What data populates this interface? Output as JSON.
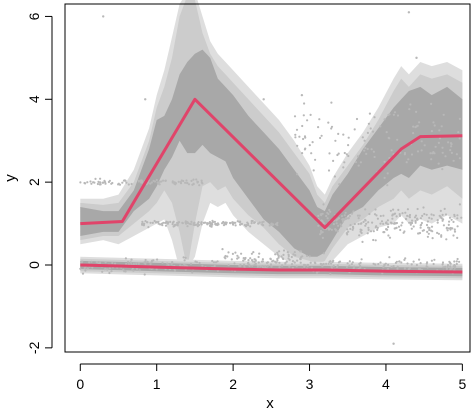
{
  "chart_data": {
    "type": "line",
    "title": "",
    "xlabel": "x",
    "ylabel": "y",
    "xlim": [
      -0.2,
      5.1
    ],
    "ylim": [
      -2.1,
      6.3
    ],
    "xticks": [
      "0",
      "1",
      "2",
      "3",
      "4",
      "5"
    ],
    "yticks": [
      "-2",
      "0",
      "2",
      "4",
      "6"
    ],
    "grid": false,
    "legend": "none",
    "colors": {
      "line": "#e0446a",
      "band_outer": "#dedede",
      "band_middle": "#cccccc",
      "band_inner": "#a8a8a8",
      "points": "#b8b8b8"
    },
    "series": [
      {
        "x": [
          0,
          0.55,
          1.5,
          3.2,
          4.2,
          4.45,
          5.0
        ],
        "y": [
          1.0,
          1.05,
          4.0,
          0.9,
          2.8,
          3.1,
          3.12
        ],
        "band_inner": {
          "x": [
            0,
            0.3,
            0.5,
            0.7,
            0.9,
            1.0,
            1.1,
            1.2,
            1.3,
            1.4,
            1.5,
            1.6,
            1.7,
            1.8,
            1.9,
            2.0,
            2.2,
            2.4,
            2.6,
            2.8,
            3.0,
            3.1,
            3.2,
            3.3,
            3.5,
            3.7,
            3.9,
            4.1,
            4.2,
            4.3,
            4.45,
            4.6,
            4.8,
            5.0
          ],
          "upper": [
            1.4,
            1.3,
            1.3,
            1.8,
            2.8,
            3.5,
            3.6,
            4.0,
            4.6,
            4.9,
            5.1,
            5.2,
            5.0,
            4.5,
            4.3,
            4.1,
            3.6,
            3.2,
            2.8,
            2.3,
            1.8,
            1.4,
            1.3,
            1.7,
            2.2,
            2.8,
            3.3,
            3.8,
            4.0,
            4.2,
            4.3,
            4.1,
            4.3,
            4.0
          ],
          "lower": [
            0.7,
            0.8,
            0.8,
            1.3,
            1.6,
            1.9,
            2.3,
            2.6,
            3.0,
            2.7,
            2.7,
            2.9,
            2.7,
            2.6,
            2.5,
            2.1,
            1.6,
            1.1,
            0.8,
            0.4,
            0.2,
            0.2,
            0.3,
            0.6,
            1.2,
            1.4,
            1.8,
            2.1,
            2.2,
            2.1,
            2.4,
            2.3,
            2.4,
            2.3
          ]
        },
        "band_middle": {
          "x": [
            0,
            0.3,
            0.5,
            0.7,
            0.9,
            1.0,
            1.1,
            1.2,
            1.3,
            1.4,
            1.5,
            1.6,
            1.7,
            1.8,
            1.9,
            2.0,
            2.2,
            2.4,
            2.6,
            2.8,
            3.0,
            3.1,
            3.2,
            3.3,
            3.5,
            3.7,
            3.9,
            4.1,
            4.2,
            4.3,
            4.45,
            4.6,
            4.8,
            5.0
          ],
          "upper": [
            1.5,
            1.45,
            1.5,
            2.0,
            3.0,
            3.8,
            4.3,
            5.0,
            6.0,
            6.5,
            6.4,
            5.6,
            5.1,
            4.8,
            4.6,
            4.4,
            4.0,
            3.6,
            3.2,
            2.7,
            2.2,
            1.7,
            1.5,
            1.9,
            2.4,
            2.9,
            3.5,
            4.2,
            4.5,
            4.3,
            4.6,
            4.5,
            4.6,
            4.4
          ],
          "lower": [
            0.6,
            0.7,
            0.7,
            1.0,
            1.3,
            1.5,
            1.8,
            1.5,
            0.8,
            -0.1,
            1.0,
            1.9,
            2.0,
            1.8,
            1.9,
            1.6,
            1.2,
            0.9,
            0.5,
            0.2,
            0.1,
            0.0,
            0.1,
            0.4,
            0.9,
            1.1,
            1.4,
            1.6,
            1.8,
            1.6,
            1.8,
            1.7,
            1.9,
            1.6
          ]
        },
        "band_outer": {
          "x": [
            0,
            0.3,
            0.5,
            0.7,
            0.9,
            1.0,
            1.1,
            1.2,
            1.3,
            1.4,
            1.5,
            1.6,
            1.7,
            1.8,
            1.9,
            2.0,
            2.2,
            2.4,
            2.6,
            2.8,
            3.0,
            3.1,
            3.2,
            3.3,
            3.5,
            3.7,
            3.9,
            4.1,
            4.2,
            4.3,
            4.45,
            4.6,
            4.8,
            5.0
          ],
          "upper": [
            1.6,
            1.6,
            1.7,
            2.3,
            3.3,
            4.1,
            4.7,
            5.5,
            6.3,
            6.6,
            6.6,
            6.0,
            5.4,
            5.1,
            4.9,
            4.7,
            4.3,
            3.9,
            3.5,
            3.0,
            2.4,
            1.9,
            1.7,
            2.1,
            2.7,
            3.2,
            3.8,
            4.5,
            4.8,
            4.6,
            4.9,
            4.8,
            4.9,
            4.7
          ],
          "lower": [
            0.5,
            0.6,
            0.5,
            0.7,
            0.9,
            1.0,
            1.1,
            0.6,
            -0.1,
            -0.1,
            0.2,
            1.0,
            1.5,
            1.4,
            1.5,
            1.2,
            0.8,
            0.5,
            0.2,
            0.0,
            -0.1,
            -0.1,
            -0.1,
            0.1,
            0.5,
            0.7,
            0.9,
            1.0,
            1.2,
            1.0,
            1.1,
            1.0,
            1.2,
            1.0
          ]
        }
      },
      {
        "x": [
          0,
          1.0,
          2.0,
          2.6,
          3.2,
          4.0,
          5.0
        ],
        "y": [
          0.0,
          -0.05,
          -0.1,
          -0.12,
          -0.12,
          -0.15,
          -0.17
        ],
        "band_inner": {
          "x": [
            0,
            1.0,
            2.0,
            2.6,
            3.2,
            4.0,
            5.0
          ],
          "upper": [
            0.1,
            0.05,
            0.0,
            -0.02,
            -0.02,
            -0.05,
            -0.07
          ],
          "lower": [
            -0.1,
            -0.15,
            -0.2,
            -0.22,
            -0.22,
            -0.25,
            -0.27
          ]
        },
        "band_middle": {
          "x": [
            0,
            1.0,
            2.0,
            2.6,
            3.2,
            4.0,
            5.0
          ],
          "upper": [
            0.15,
            0.1,
            0.05,
            0.03,
            0.03,
            0.0,
            -0.02
          ],
          "lower": [
            -0.15,
            -0.2,
            -0.25,
            -0.27,
            -0.27,
            -0.3,
            -0.32
          ]
        },
        "band_outer": {
          "x": [
            0,
            1.0,
            2.0,
            2.6,
            3.2,
            4.0,
            5.0
          ],
          "upper": [
            0.2,
            0.15,
            0.1,
            0.08,
            0.08,
            0.05,
            0.03
          ],
          "lower": [
            -0.2,
            -0.25,
            -0.3,
            -0.32,
            -0.32,
            -0.35,
            -0.37
          ]
        }
      }
    ],
    "scatter_clusters": [
      {
        "x_range": [
          0,
          5
        ],
        "y_center": 0.0,
        "y_spread": 0.12,
        "count": 320
      },
      {
        "x_range": [
          0,
          1.6
        ],
        "y_center": 2.0,
        "y_spread": 0.05,
        "count": 90
      },
      {
        "x_range": [
          0.8,
          2.6
        ],
        "y_center": 1.0,
        "y_spread": 0.05,
        "count": 150
      },
      {
        "x_range": [
          3.1,
          5.0
        ],
        "y_center": 1.0,
        "y_spread": 0.25,
        "count": 260
      },
      {
        "x_range": [
          2.8,
          5.0
        ],
        "y_center": 3.0,
        "y_spread": 0.6,
        "count": 140
      },
      {
        "x_range": [
          1.8,
          3.2
        ],
        "y_center": 0.2,
        "y_spread": 0.12,
        "count": 60
      }
    ],
    "outliers": [
      {
        "x": 0.3,
        "y": 6.0
      },
      {
        "x": 4.3,
        "y": 6.1
      },
      {
        "x": 4.1,
        "y": -1.9
      },
      {
        "x": 4.4,
        "y": 5.0
      },
      {
        "x": 2.4,
        "y": 4.0
      },
      {
        "x": 0.85,
        "y": 4.0
      },
      {
        "x": 2.9,
        "y": 4.1
      }
    ]
  }
}
